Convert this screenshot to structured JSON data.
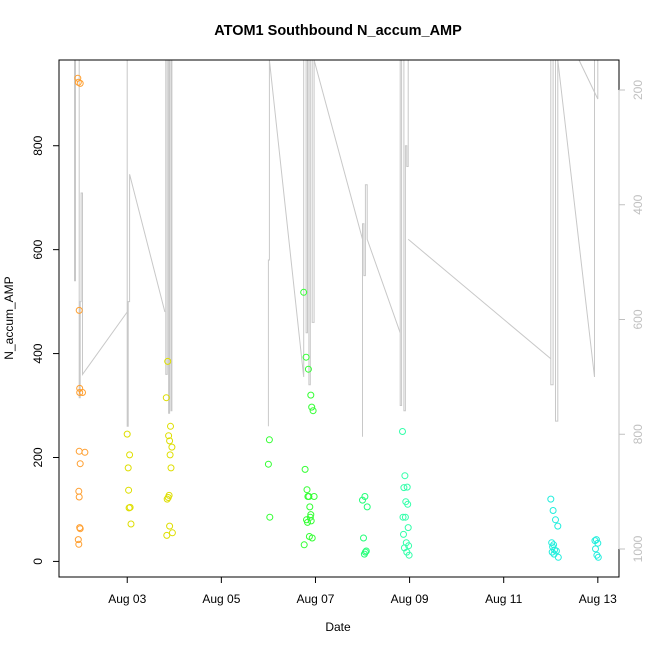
{
  "chart_data": {
    "type": "scatter",
    "title": "ATOM1 Southbound N_accum_AMP",
    "xlabel": "Date",
    "ylabel": "N_accum_AMP",
    "x_ticks": [
      {
        "value": 3,
        "label": "Aug 03"
      },
      {
        "value": 5,
        "label": "Aug 05"
      },
      {
        "value": 7,
        "label": "Aug 07"
      },
      {
        "value": 9,
        "label": "Aug 09"
      },
      {
        "value": 11,
        "label": "Aug 11"
      },
      {
        "value": 13,
        "label": "Aug 13"
      }
    ],
    "xlim": [
      1.55,
      13.45
    ],
    "ylim": [
      -30,
      965
    ],
    "y_ticks": [
      0,
      200,
      400,
      600,
      800
    ],
    "y2_ticks": [
      200,
      400,
      600,
      800,
      1000
    ],
    "y2_direction": "reversed",
    "grid": false,
    "legend": "none",
    "line_color": "#c8c8c8",
    "series": [
      {
        "color": "#ff9f30",
        "x": [
          1.95,
          1.96,
          1.98,
          1.99,
          2.0,
          1.97,
          1.98,
          1.99,
          2.0,
          1.96,
          1.97,
          1.98,
          1.99,
          2.0,
          2.05,
          2.1
        ],
        "y": [
          930,
          922,
          483,
          333,
          188,
          135,
          124,
          65,
          63,
          42,
          33,
          212,
          325,
          920,
          325,
          210
        ]
      },
      {
        "color": "#dede00",
        "x": [
          3.0,
          3.02,
          3.05,
          3.03,
          3.04,
          3.06,
          3.08,
          3.83,
          3.86,
          3.88,
          3.9,
          3.92,
          3.95,
          3.85,
          3.87,
          3.89,
          3.91,
          3.93,
          3.84,
          3.9,
          3.96
        ],
        "y": [
          245,
          180,
          205,
          137,
          103,
          104,
          72,
          315,
          385,
          242,
          232,
          260,
          220,
          120,
          123,
          127,
          205,
          180,
          50,
          68,
          55
        ]
      },
      {
        "color": "#33ff33",
        "x": [
          6.0,
          6.02,
          6.03,
          6.75,
          6.8,
          6.85,
          6.9,
          6.92,
          6.95,
          6.78,
          6.82,
          6.84,
          6.86,
          6.88,
          6.9,
          6.76,
          6.87,
          6.93,
          6.97,
          6.81,
          6.83,
          6.89,
          6.91
        ],
        "y": [
          187,
          234,
          85,
          518,
          393,
          370,
          320,
          297,
          290,
          177,
          138,
          125,
          125,
          105,
          90,
          32,
          48,
          45,
          125,
          80,
          75,
          85,
          78
        ]
      },
      {
        "color": "#22ff77",
        "x": [
          8.0,
          8.05,
          8.1,
          8.02,
          8.06,
          8.04,
          8.08
        ],
        "y": [
          118,
          125,
          105,
          45,
          18,
          14,
          20
        ]
      },
      {
        "color": "#33ffaa",
        "x": [
          8.85,
          8.9,
          8.95,
          8.88,
          8.92,
          8.96,
          8.86,
          8.91,
          8.97,
          8.87,
          8.93,
          8.98,
          8.89,
          8.94,
          8.99
        ],
        "y": [
          250,
          165,
          143,
          142,
          115,
          110,
          85,
          85,
          65,
          52,
          36,
          30,
          26,
          18,
          12
        ]
      },
      {
        "color": "#22eedd",
        "x": [
          12.0,
          12.05,
          12.1,
          12.15,
          12.02,
          12.06,
          12.04,
          12.08,
          12.12,
          12.03,
          12.07,
          12.16,
          12.94,
          12.97,
          13.0,
          12.95,
          12.98,
          13.01
        ],
        "y": [
          120,
          98,
          80,
          68,
          36,
          32,
          28,
          22,
          20,
          18,
          14,
          8,
          40,
          42,
          35,
          24,
          12,
          8
        ]
      }
    ],
    "line_segments": [
      [
        [
          1.88,
          965
        ],
        [
          1.88,
          540
        ],
        [
          1.9,
          540
        ],
        [
          1.9,
          965
        ]
      ],
      [
        [
          1.98,
          965
        ],
        [
          1.98,
          315
        ],
        [
          2.0,
          315
        ],
        [
          2.0,
          500
        ],
        [
          2.02,
          500
        ],
        [
          2.02,
          709
        ],
        [
          2.05,
          709
        ],
        [
          2.05,
          360
        ],
        [
          3.0,
          480
        ]
      ],
      [
        [
          3.0,
          965
        ],
        [
          3.0,
          260
        ],
        [
          3.02,
          260
        ],
        [
          3.02,
          500
        ],
        [
          3.05,
          500
        ],
        [
          3.05,
          745
        ],
        [
          3.8,
          480
        ]
      ],
      [
        [
          3.82,
          965
        ],
        [
          3.82,
          360
        ],
        [
          3.85,
          360
        ],
        [
          3.85,
          965
        ],
        [
          3.88,
          965
        ],
        [
          3.88,
          285
        ],
        [
          3.9,
          285
        ],
        [
          3.9,
          965
        ],
        [
          3.93,
          965
        ],
        [
          3.93,
          290
        ],
        [
          3.95,
          290
        ],
        [
          3.95,
          965
        ]
      ],
      [
        [
          6.0,
          260
        ],
        [
          6.0,
          580
        ],
        [
          6.02,
          580
        ],
        [
          6.02,
          965
        ],
        [
          6.75,
          355
        ],
        [
          6.75,
          965
        ],
        [
          6.8,
          965
        ],
        [
          6.8,
          440
        ],
        [
          6.83,
          440
        ],
        [
          6.83,
          965
        ],
        [
          6.86,
          965
        ],
        [
          6.86,
          340
        ],
        [
          6.89,
          340
        ],
        [
          6.89,
          965
        ],
        [
          6.93,
          965
        ],
        [
          6.93,
          460
        ],
        [
          6.97,
          460
        ],
        [
          6.97,
          965
        ]
      ],
      [
        [
          6.97,
          965
        ],
        [
          8.0,
          620
        ]
      ],
      [
        [
          8.0,
          240
        ],
        [
          8.0,
          650
        ],
        [
          8.03,
          650
        ],
        [
          8.03,
          550
        ],
        [
          8.06,
          550
        ],
        [
          8.06,
          725
        ],
        [
          8.1,
          725
        ],
        [
          8.1,
          620
        ],
        [
          8.8,
          440
        ]
      ],
      [
        [
          8.8,
          965
        ],
        [
          8.8,
          300
        ],
        [
          8.83,
          300
        ],
        [
          8.83,
          965
        ],
        [
          8.88,
          965
        ],
        [
          8.88,
          290
        ],
        [
          8.91,
          290
        ],
        [
          8.91,
          800
        ],
        [
          8.94,
          800
        ],
        [
          8.94,
          760
        ],
        [
          8.97,
          760
        ],
        [
          8.97,
          965
        ]
      ],
      [
        [
          8.97,
          620
        ],
        [
          12.0,
          390
        ]
      ],
      [
        [
          12.0,
          965
        ],
        [
          12.0,
          340
        ],
        [
          12.05,
          340
        ],
        [
          12.05,
          965
        ],
        [
          12.1,
          965
        ],
        [
          12.1,
          270
        ],
        [
          12.15,
          270
        ],
        [
          12.15,
          965
        ]
      ],
      [
        [
          12.15,
          965
        ],
        [
          12.93,
          355
        ],
        [
          12.93,
          965
        ]
      ],
      [
        [
          12.6,
          965
        ],
        [
          13.0,
          890
        ],
        [
          13.0,
          965
        ]
      ]
    ]
  }
}
